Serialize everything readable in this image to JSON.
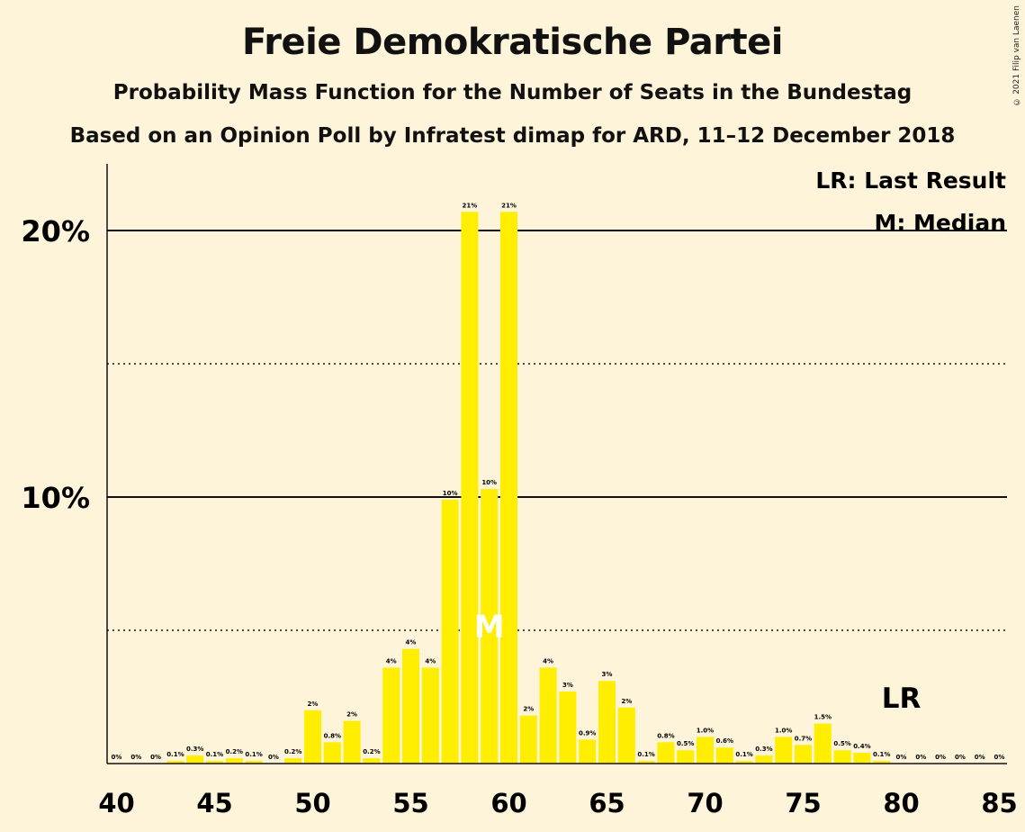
{
  "header": {
    "title": "Freie Demokratische Partei",
    "subtitle": "Probability Mass Function for the Number of Seats in the Bundestag",
    "subtitle2": "Based on an Opinion Poll by Infratest dimap for ARD, 11–12 December 2018",
    "copyright": "© 2021 Filip van Laenen"
  },
  "legend": {
    "last_result": "LR: Last Result",
    "median": "M: Median"
  },
  "colors": {
    "background": "#fdf4d9",
    "bar": "#ffee00",
    "text": "#111111"
  },
  "chart_data": {
    "type": "bar",
    "title": "Freie Demokratische Partei",
    "xlabel": "",
    "ylabel": "",
    "x": [
      40,
      41,
      42,
      43,
      44,
      45,
      46,
      47,
      48,
      49,
      50,
      51,
      52,
      53,
      54,
      55,
      56,
      57,
      58,
      59,
      60,
      61,
      62,
      63,
      64,
      65,
      66,
      67,
      68,
      69,
      70,
      71,
      72,
      73,
      74,
      75,
      76,
      77,
      78,
      79,
      80,
      81,
      82,
      83,
      84,
      85
    ],
    "values": [
      0,
      0,
      0,
      0.1,
      0.3,
      0.1,
      0.2,
      0.1,
      0,
      0.2,
      2,
      0.8,
      1.6,
      0.2,
      3.6,
      4.3,
      3.6,
      9.9,
      20.7,
      10.3,
      20.7,
      1.8,
      3.6,
      2.7,
      0.9,
      3.1,
      2.1,
      0.1,
      0.8,
      0.5,
      1.0,
      0.6,
      0.1,
      0.3,
      1.0,
      0.7,
      1.5,
      0.5,
      0.4,
      0.1,
      0,
      0,
      0,
      0,
      0,
      0
    ],
    "labels": [
      "0%",
      "0%",
      "0%",
      "0.1%",
      "0.3%",
      "0.1%",
      "0.2%",
      "0.1%",
      "0%",
      "0.2%",
      "2%",
      "0.8%",
      "2%",
      "0.2%",
      "4%",
      "4%",
      "4%",
      "10%",
      "21%",
      "10%",
      "21%",
      "2%",
      "4%",
      "3%",
      "0.9%",
      "3%",
      "2%",
      "0.1%",
      "0.8%",
      "0.5%",
      "1.0%",
      "0.6%",
      "0.1%",
      "0.3%",
      "1.0%",
      "0.7%",
      "1.5%",
      "0.5%",
      "0.4%",
      "0.1%",
      "0%",
      "0%",
      "0%",
      "0%",
      "0%",
      "0%"
    ],
    "xticks": [
      40,
      45,
      50,
      55,
      60,
      65,
      70,
      75,
      80,
      85
    ],
    "xtick_labels": [
      "40",
      "45",
      "50",
      "55",
      "60",
      "65",
      "70",
      "75",
      "80",
      "85"
    ],
    "yticks_major": [
      10,
      20
    ],
    "ytick_labels": [
      "10%",
      "20%"
    ],
    "yticks_minor": [
      5,
      15
    ],
    "ylim": [
      0,
      22
    ],
    "median": 59,
    "median_label": "M",
    "last_result": 80,
    "last_result_label": "LR"
  }
}
